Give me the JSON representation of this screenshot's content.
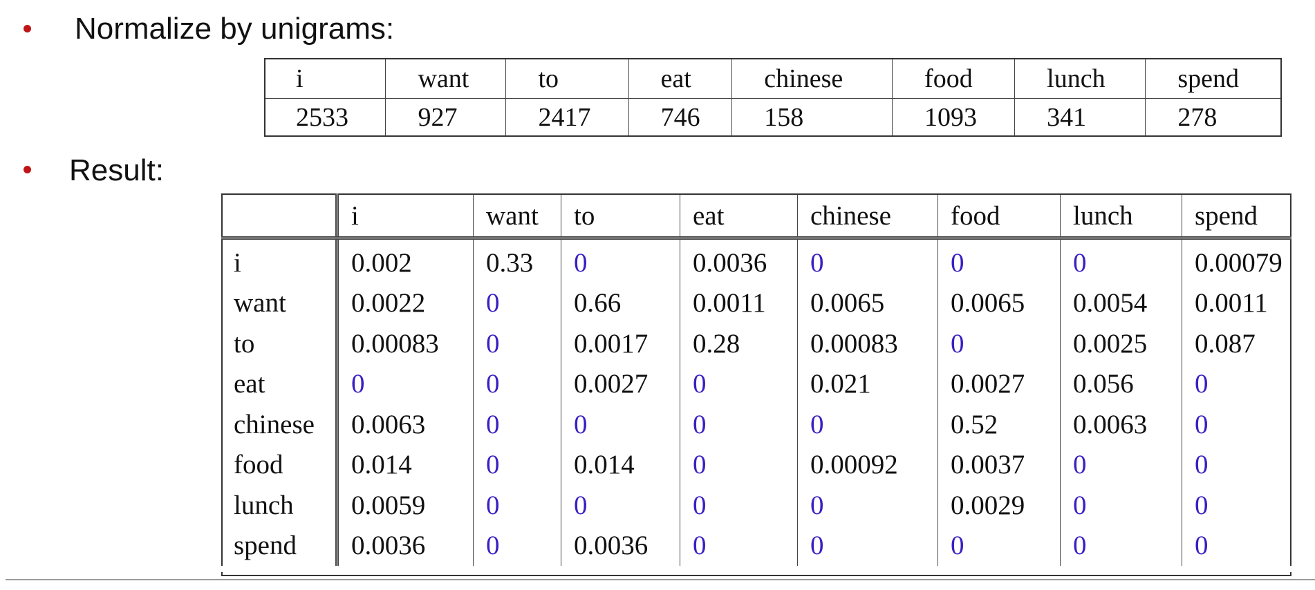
{
  "bullets": [
    {
      "label": "Normalize by unigrams:"
    },
    {
      "label": "Result:"
    }
  ],
  "unigram_table": {
    "headers": [
      "i",
      "want",
      "to",
      "eat",
      "chinese",
      "food",
      "lunch",
      "spend"
    ],
    "counts": [
      "2533",
      "927",
      "2417",
      "746",
      "158",
      "1093",
      "341",
      "278"
    ]
  },
  "result_table": {
    "columns": [
      "",
      "i",
      "want",
      "to",
      "eat",
      "chinese",
      "food",
      "lunch",
      "spend"
    ],
    "rows": [
      {
        "label": "i",
        "values": [
          "0.002",
          "0.33",
          "0",
          "0.0036",
          "0",
          "0",
          "0",
          "0.00079"
        ]
      },
      {
        "label": "want",
        "values": [
          "0.0022",
          "0",
          "0.66",
          "0.0011",
          "0.0065",
          "0.0065",
          "0.0054",
          "0.0011"
        ]
      },
      {
        "label": "to",
        "values": [
          "0.00083",
          "0",
          "0.0017",
          "0.28",
          "0.00083",
          "0",
          "0.0025",
          "0.087"
        ]
      },
      {
        "label": "eat",
        "values": [
          "0",
          "0",
          "0.0027",
          "0",
          "0.021",
          "0.0027",
          "0.056",
          "0"
        ]
      },
      {
        "label": "chinese",
        "values": [
          "0.0063",
          "0",
          "0",
          "0",
          "0",
          "0.52",
          "0.0063",
          "0"
        ]
      },
      {
        "label": "food",
        "values": [
          "0.014",
          "0",
          "0.014",
          "0",
          "0.00092",
          "0.0037",
          "0",
          "0"
        ]
      },
      {
        "label": "lunch",
        "values": [
          "0.0059",
          "0",
          "0",
          "0",
          "0",
          "0.0029",
          "0",
          "0"
        ]
      },
      {
        "label": "spend",
        "values": [
          "0.0036",
          "0",
          "0.0036",
          "0",
          "0",
          "0",
          "0",
          "0"
        ]
      }
    ]
  },
  "colors": {
    "bullet": "#c01515",
    "zero_value": "#3a1fc4",
    "text": "#111111"
  }
}
